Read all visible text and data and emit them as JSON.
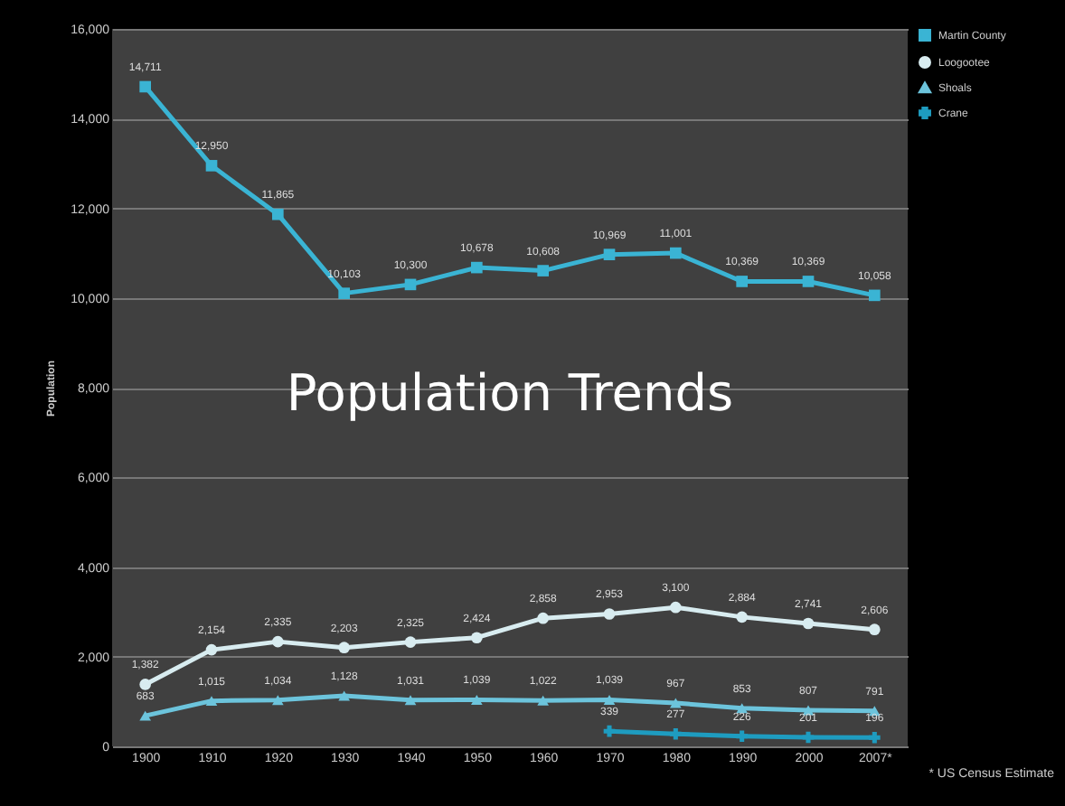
{
  "chart_data": {
    "type": "line",
    "title": "Population Trends",
    "ylabel": "Population",
    "categories": [
      "1900",
      "1910",
      "1920",
      "1930",
      "1940",
      "1950",
      "1960",
      "1970",
      "1980",
      "1990",
      "2000",
      "2007*"
    ],
    "series": [
      {
        "name": "Martin County",
        "color": "#3ab4d4",
        "marker": "square",
        "values": [
          14711,
          12950,
          11865,
          10103,
          10300,
          10678,
          10608,
          10969,
          11001,
          10369,
          10369,
          10058
        ],
        "value_labels": [
          "14,711",
          "12,950",
          "11,865",
          "10,103",
          "10,300",
          "10,678",
          "10,608",
          "10,969",
          "11,001",
          "10,369",
          "10,369",
          "10,058"
        ]
      },
      {
        "name": "Loogootee",
        "color": "#d8ecf0",
        "marker": "circle",
        "values": [
          1382,
          2154,
          2335,
          2203,
          2325,
          2424,
          2858,
          2953,
          3100,
          2884,
          2741,
          2606
        ],
        "value_labels": [
          "1,382",
          "2,154",
          "2,335",
          "2,203",
          "2,325",
          "2,424",
          "2,858",
          "2,953",
          "3,100",
          "2,884",
          "2,741",
          "2,606"
        ]
      },
      {
        "name": "Shoals",
        "color": "#6cc4dc",
        "marker": "triangle",
        "values": [
          683,
          1015,
          1034,
          1128,
          1031,
          1039,
          1022,
          1039,
          967,
          853,
          807,
          791
        ],
        "value_labels": [
          "683",
          "1,015",
          "1,034",
          "1,128",
          "1,031",
          "1,039",
          "1,022",
          "1,039",
          "967",
          "853",
          "807",
          "791"
        ]
      },
      {
        "name": "Crane",
        "color": "#1e9cc0",
        "marker": "cross",
        "values": [
          null,
          null,
          null,
          null,
          null,
          null,
          null,
          339,
          277,
          226,
          201,
          196
        ],
        "value_labels": [
          null,
          null,
          null,
          null,
          null,
          null,
          null,
          "339",
          "277",
          "226",
          "201",
          "196"
        ]
      }
    ],
    "ylim": [
      0,
      16000
    ],
    "yticks": [
      0,
      {
        "value": 2000,
        "label": "2,000"
      },
      {
        "value": 4000,
        "label": "4,000"
      },
      {
        "value": 6000,
        "label": "6,000"
      },
      {
        "value": 8000,
        "label": "8,000"
      },
      {
        "value": 10000,
        "label": "10,000"
      },
      {
        "value": 12000,
        "label": "12,000"
      },
      {
        "value": 14000,
        "label": "14,000"
      },
      {
        "value": 16000,
        "label": "16,000"
      }
    ],
    "grid": "y",
    "legend": "right",
    "annotations": [
      "* US Census Estimate"
    ]
  }
}
